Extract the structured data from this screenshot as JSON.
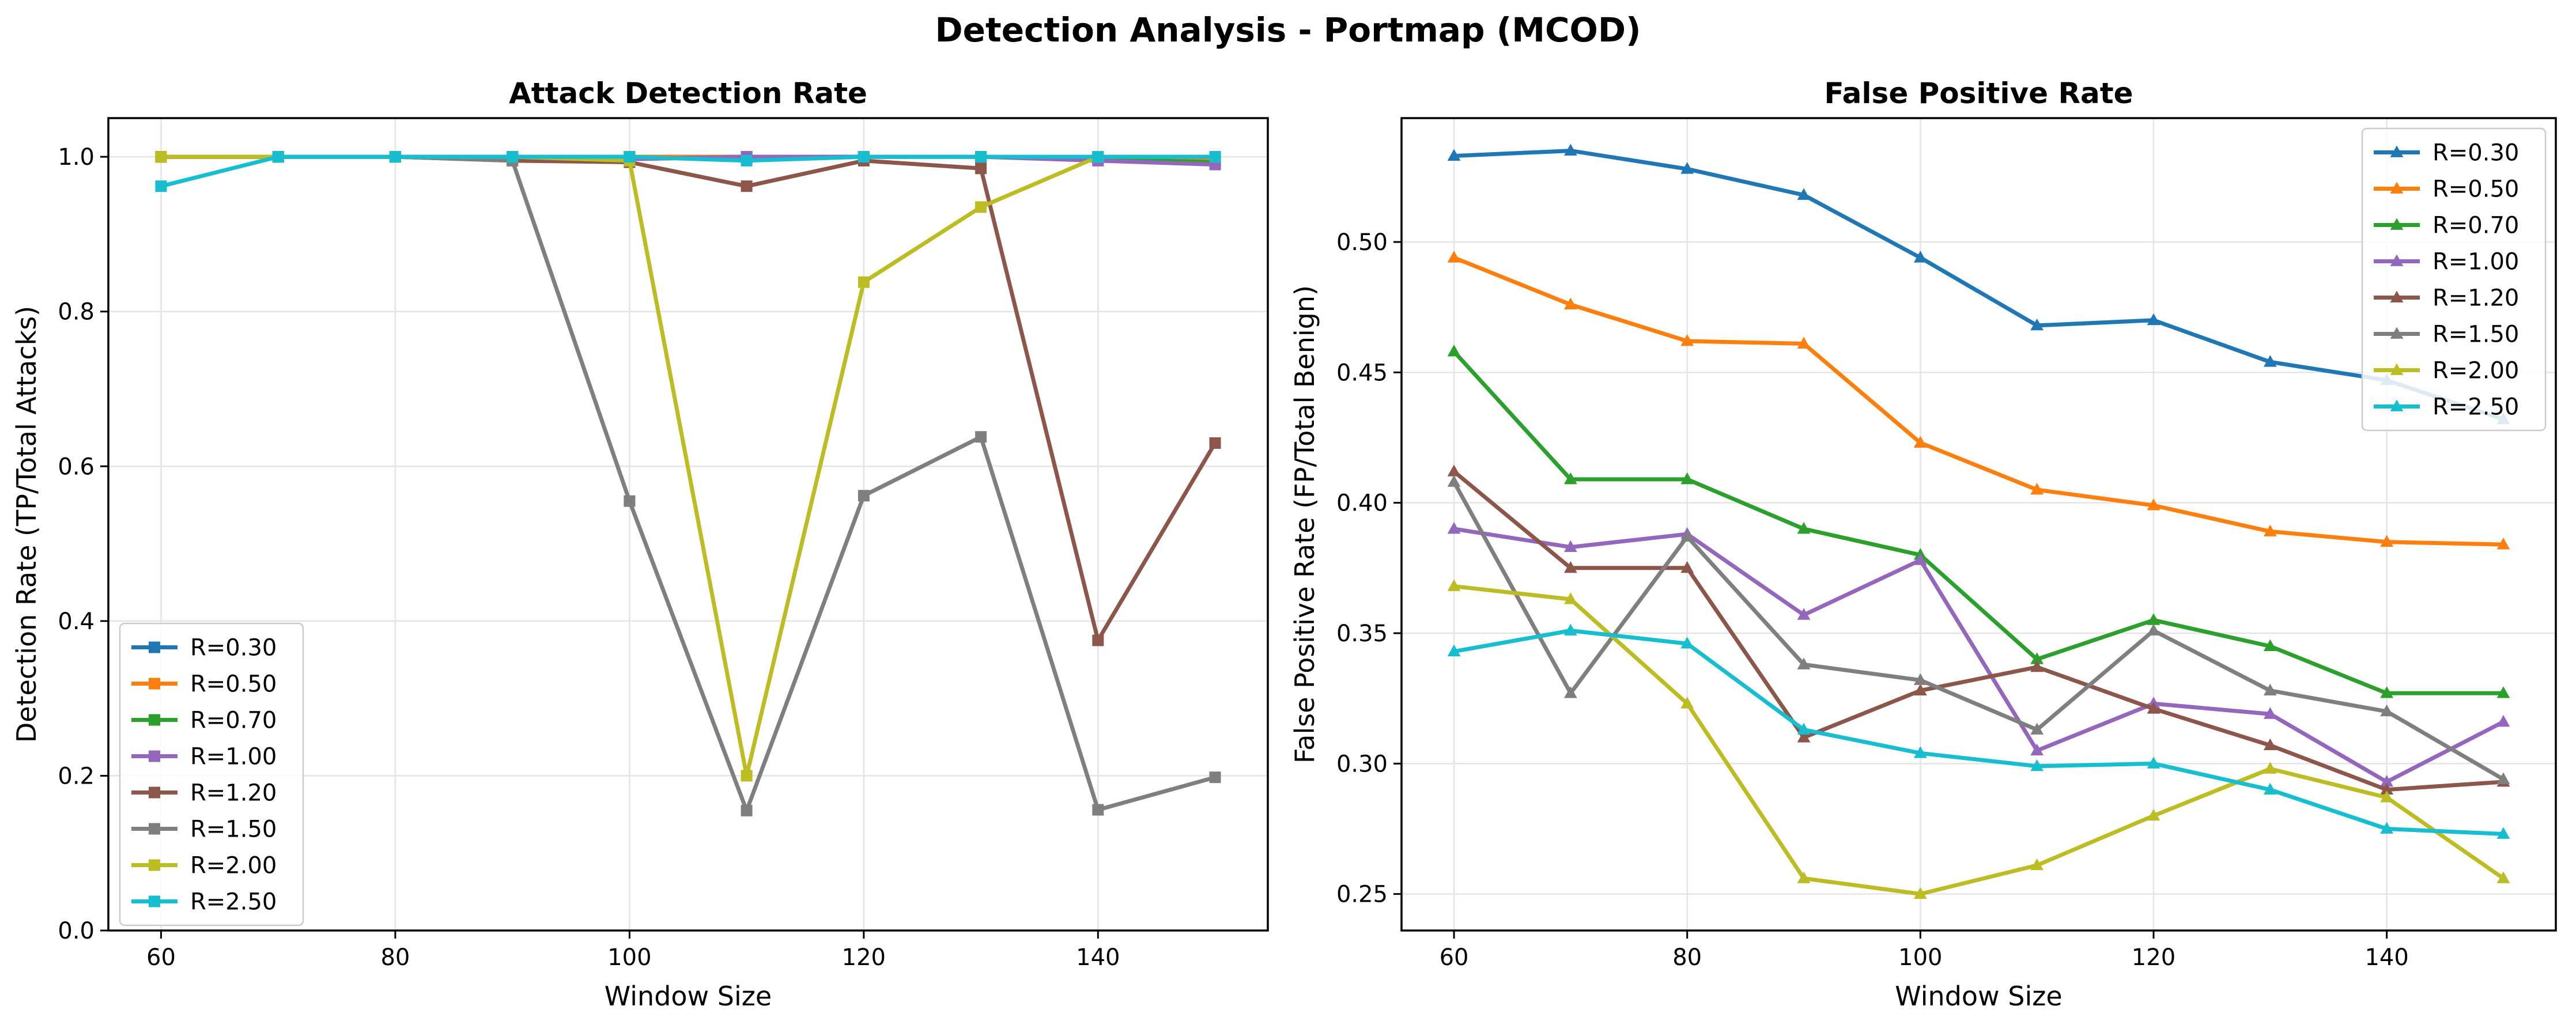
{
  "figure": {
    "title": "Detection Analysis - Portmap (MCOD)"
  },
  "series_colors": {
    "R=0.30": "#1f77b4",
    "R=0.50": "#ff7f0e",
    "R=0.70": "#2ca02c",
    "R=1.00": "#9467bd",
    "R=1.20": "#8c564b",
    "R=1.50": "#7f7f7f",
    "R=2.00": "#bcbd22",
    "R=2.50": "#17becf"
  },
  "chart_data": [
    {
      "type": "line",
      "title": "Attack Detection Rate",
      "xlabel": "Window Size",
      "ylabel": "Detection Rate (TP/Total Attacks)",
      "marker": "square",
      "grid": true,
      "legend_position": "lower-left",
      "xlim": [
        55.5,
        154.5
      ],
      "ylim": [
        0.0,
        1.05
      ],
      "xticks": [
        60,
        80,
        100,
        120,
        140
      ],
      "xtick_labels": [
        "60",
        "80",
        "100",
        "120",
        "140"
      ],
      "yticks": [
        0.0,
        0.2,
        0.4,
        0.6,
        0.8,
        1.0
      ],
      "ytick_labels": [
        "0.0",
        "0.2",
        "0.4",
        "0.6",
        "0.8",
        "1.0"
      ],
      "x": [
        60,
        70,
        80,
        90,
        100,
        110,
        120,
        130,
        140,
        150
      ],
      "series": [
        {
          "name": "R=0.30",
          "values": [
            1.0,
            1.0,
            1.0,
            1.0,
            1.0,
            1.0,
            1.0,
            1.0,
            0.997,
            0.995
          ]
        },
        {
          "name": "R=0.50",
          "values": [
            1.0,
            1.0,
            1.0,
            1.0,
            1.0,
            1.0,
            1.0,
            1.0,
            0.997,
            0.995
          ]
        },
        {
          "name": "R=0.70",
          "values": [
            1.0,
            1.0,
            1.0,
            1.0,
            0.997,
            1.0,
            1.0,
            1.0,
            0.997,
            0.993
          ]
        },
        {
          "name": "R=1.00",
          "values": [
            1.0,
            1.0,
            1.0,
            1.0,
            0.997,
            1.0,
            1.0,
            1.0,
            0.995,
            0.99
          ]
        },
        {
          "name": "R=1.20",
          "values": [
            1.0,
            1.0,
            1.0,
            0.995,
            0.993,
            0.962,
            0.995,
            0.985,
            0.375,
            0.63
          ]
        },
        {
          "name": "R=1.50",
          "values": [
            1.0,
            1.0,
            1.0,
            0.995,
            0.555,
            0.155,
            0.562,
            0.638,
            0.156,
            0.198
          ]
        },
        {
          "name": "R=2.00",
          "values": [
            1.0,
            1.0,
            1.0,
            1.0,
            0.995,
            0.2,
            0.838,
            0.935,
            1.0,
            1.0
          ]
        },
        {
          "name": "R=2.50",
          "values": [
            0.962,
            1.0,
            1.0,
            1.0,
            1.0,
            0.995,
            1.0,
            1.0,
            1.0,
            1.0
          ]
        }
      ]
    },
    {
      "type": "line",
      "title": "False Positive Rate",
      "xlabel": "Window Size",
      "ylabel": "False Positive Rate (FP/Total Benign)",
      "marker": "triangle",
      "grid": true,
      "legend_position": "top-right",
      "xlim": [
        55.5,
        154.5
      ],
      "ylim": [
        0.236,
        0.5475
      ],
      "xticks": [
        60,
        80,
        100,
        120,
        140
      ],
      "xtick_labels": [
        "60",
        "80",
        "100",
        "120",
        "140"
      ],
      "yticks": [
        0.25,
        0.3,
        0.35,
        0.4,
        0.45,
        0.5
      ],
      "ytick_labels": [
        "0.25",
        "0.30",
        "0.35",
        "0.40",
        "0.45",
        "0.50"
      ],
      "x": [
        60,
        70,
        80,
        90,
        100,
        110,
        120,
        130,
        140,
        150
      ],
      "series": [
        {
          "name": "R=0.30",
          "values": [
            0.533,
            0.535,
            0.528,
            0.518,
            0.494,
            0.468,
            0.47,
            0.454,
            0.447,
            0.432
          ]
        },
        {
          "name": "R=0.50",
          "values": [
            0.494,
            0.476,
            0.462,
            0.461,
            0.423,
            0.405,
            0.399,
            0.389,
            0.385,
            0.384
          ]
        },
        {
          "name": "R=0.70",
          "values": [
            0.458,
            0.409,
            0.409,
            0.39,
            0.38,
            0.34,
            0.355,
            0.345,
            0.327,
            0.327
          ]
        },
        {
          "name": "R=1.00",
          "values": [
            0.39,
            0.383,
            0.388,
            0.357,
            0.378,
            0.305,
            0.323,
            0.319,
            0.293,
            0.316
          ]
        },
        {
          "name": "R=1.20",
          "values": [
            0.412,
            0.375,
            0.375,
            0.31,
            0.328,
            0.337,
            0.321,
            0.307,
            0.29,
            0.293
          ]
        },
        {
          "name": "R=1.50",
          "values": [
            0.408,
            0.327,
            0.387,
            0.338,
            0.332,
            0.313,
            0.351,
            0.328,
            0.32,
            0.294
          ]
        },
        {
          "name": "R=2.00",
          "values": [
            0.368,
            0.363,
            0.323,
            0.256,
            0.25,
            0.261,
            0.28,
            0.298,
            0.287,
            0.256
          ]
        },
        {
          "name": "R=2.50",
          "values": [
            0.343,
            0.351,
            0.346,
            0.313,
            0.304,
            0.299,
            0.3,
            0.29,
            0.275,
            0.273
          ]
        }
      ]
    }
  ]
}
